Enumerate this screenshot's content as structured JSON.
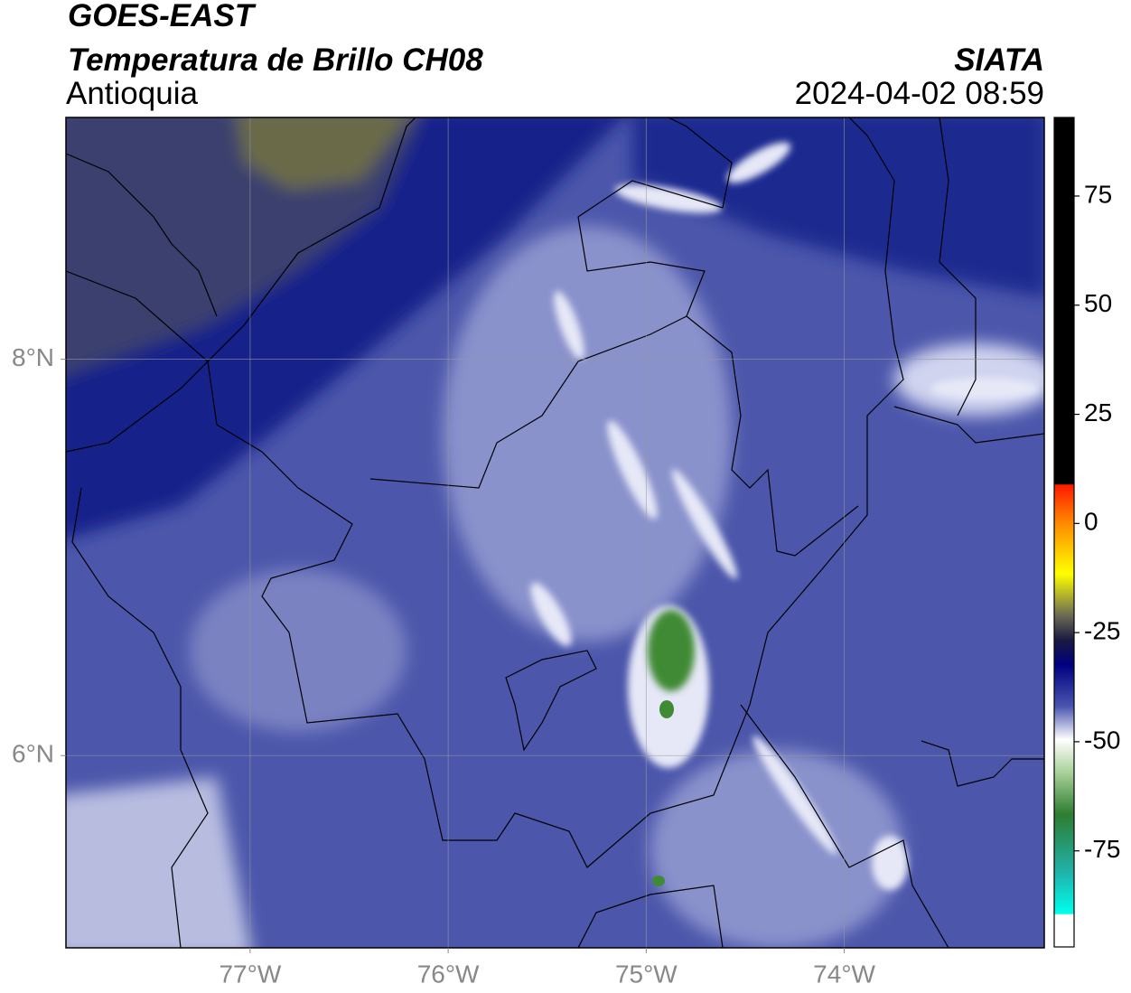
{
  "header": {
    "title": "GOES-EAST",
    "subtitle": "Temperatura de Brillo CH08",
    "region": "Antioquia",
    "organization": "SIATA",
    "datetime": "2024-04-02 08:59"
  },
  "map": {
    "xlim": [
      -77.93,
      -72.99
    ],
    "ylim": [
      5.03,
      9.22
    ],
    "xticks": [
      {
        "value": -77,
        "label": "77°W"
      },
      {
        "value": -76,
        "label": "76°W"
      },
      {
        "value": -75,
        "label": "75°W"
      },
      {
        "value": -74,
        "label": "74°W"
      }
    ],
    "yticks": [
      {
        "value": 6,
        "label": "6°N"
      },
      {
        "value": 8,
        "label": "8°N"
      }
    ],
    "grid": true
  },
  "colorbar": {
    "lim": [
      -97,
      93
    ],
    "ticks": [
      75,
      50,
      25,
      0,
      -25,
      -50,
      -75
    ]
  }
}
